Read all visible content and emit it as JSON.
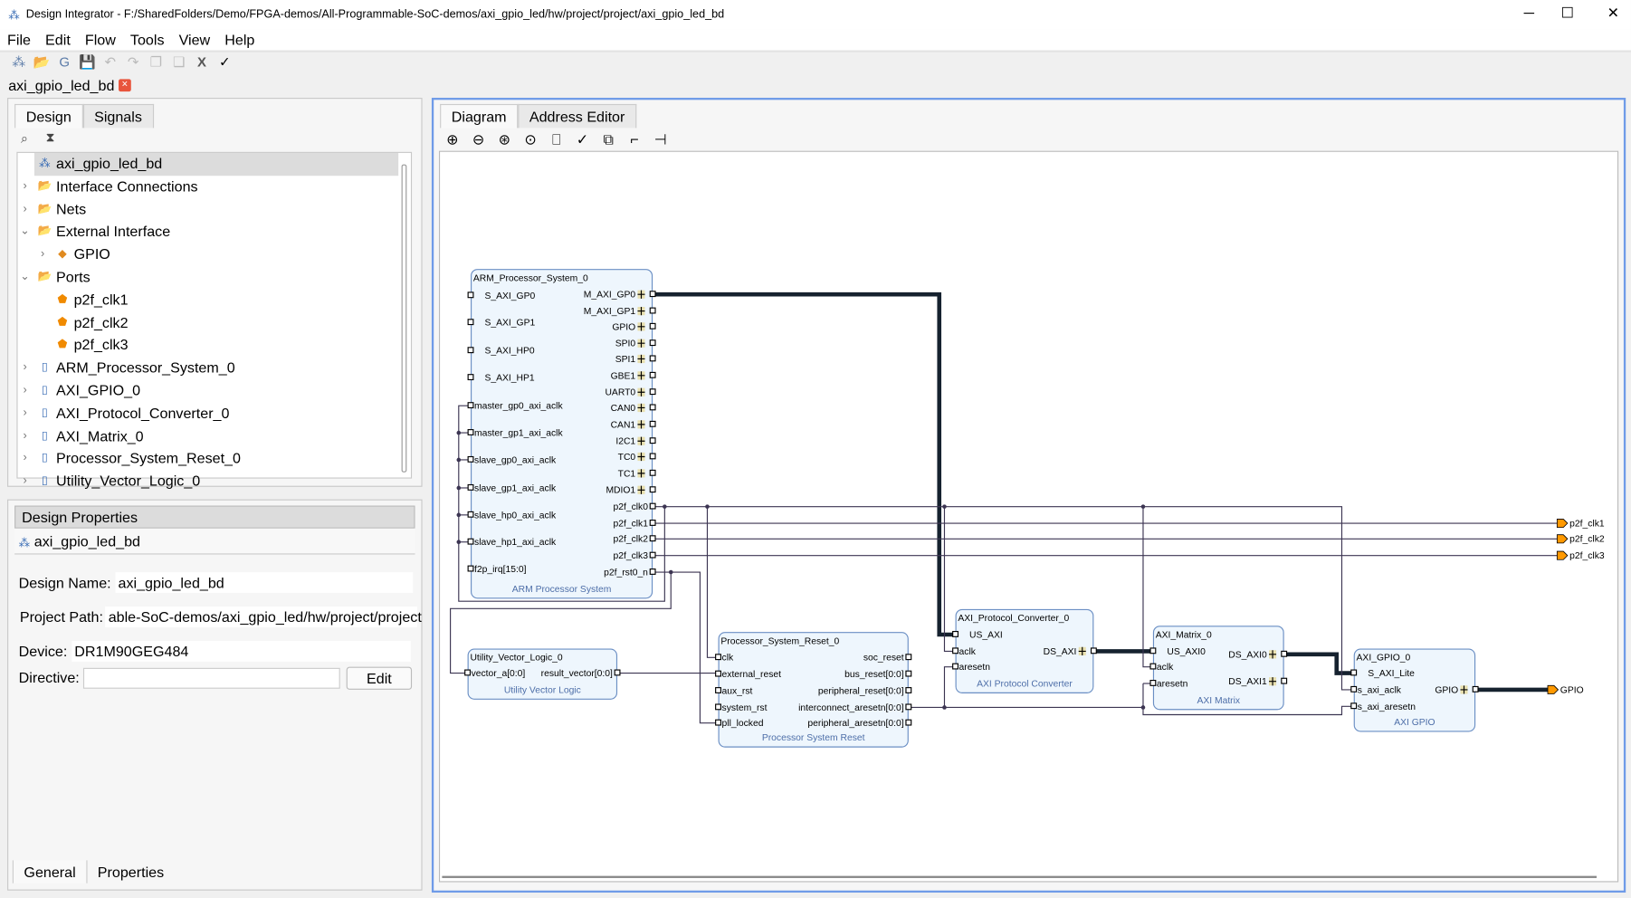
{
  "window": {
    "title": "Design Integrator - F:/SharedFolders/Demo/FPGA-demos/All-Programmable-SoC-demos/axi_gpio_led/hw/project/project/axi_gpio_led_bd",
    "minimize": "─",
    "maximize": "☐",
    "close": "✕"
  },
  "menu": [
    "File",
    "Edit",
    "Flow",
    "Tools",
    "View",
    "Help"
  ],
  "toolbar": [
    {
      "icon": "design-icon",
      "glyph": "⁂"
    },
    {
      "icon": "open-folder-icon",
      "glyph": "📂"
    },
    {
      "icon": "generate-icon",
      "glyph": "G"
    },
    {
      "icon": "save-icon",
      "glyph": "💾"
    },
    {
      "icon": "undo-icon",
      "glyph": "↶"
    },
    {
      "icon": "redo-icon",
      "glyph": "↷"
    },
    {
      "icon": "copy-icon",
      "glyph": "❐"
    },
    {
      "icon": "paste-icon",
      "glyph": "❏"
    },
    {
      "icon": "delete-icon",
      "glyph": "X"
    },
    {
      "icon": "validate-icon",
      "glyph": "✓"
    }
  ],
  "doc_tab": {
    "label": "axi_gpio_led_bd",
    "close": "×"
  },
  "left": {
    "tabs": [
      "Design",
      "Signals"
    ],
    "tree": [
      {
        "label": "axi_gpio_led_bd",
        "level": 0,
        "chevron": "",
        "icon": "⁂",
        "selected": true
      },
      {
        "label": "Interface Connections",
        "level": 0,
        "chevron": "›",
        "icon": "📂"
      },
      {
        "label": "Nets",
        "level": 0,
        "chevron": "›",
        "icon": "📂"
      },
      {
        "label": "External Interface",
        "level": 0,
        "chevron": "⌄",
        "icon": "📂"
      },
      {
        "label": "GPIO",
        "level": 1,
        "chevron": "›",
        "icon": "◆"
      },
      {
        "label": "Ports",
        "level": 0,
        "chevron": "⌄",
        "icon": "📂"
      },
      {
        "label": "p2f_clk1",
        "level": 1,
        "chevron": "",
        "icon": "⬟"
      },
      {
        "label": "p2f_clk2",
        "level": 1,
        "chevron": "",
        "icon": "⬟"
      },
      {
        "label": "p2f_clk3",
        "level": 1,
        "chevron": "",
        "icon": "⬟"
      },
      {
        "label": "ARM_Processor_System_0",
        "level": 0,
        "chevron": "›",
        "icon": "▯"
      },
      {
        "label": "AXI_GPIO_0",
        "level": 0,
        "chevron": "›",
        "icon": "▯"
      },
      {
        "label": "AXI_Protocol_Converter_0",
        "level": 0,
        "chevron": "›",
        "icon": "▯"
      },
      {
        "label": "AXI_Matrix_0",
        "level": 0,
        "chevron": "›",
        "icon": "▯"
      },
      {
        "label": "Processor_System_Reset_0",
        "level": 0,
        "chevron": "›",
        "icon": "▯"
      },
      {
        "label": "Utility_Vector_Logic_0",
        "level": 0,
        "chevron": "›",
        "icon": "▯"
      }
    ]
  },
  "properties": {
    "header": "Design Properties",
    "design": "axi_gpio_led_bd",
    "design_name_label": "Design Name:",
    "design_name": "axi_gpio_led_bd",
    "project_path_label": "Project Path:",
    "project_path": "able-SoC-demos/axi_gpio_led/hw/project/project",
    "device_label": "Device:",
    "device": "DR1M90GEG484",
    "directive_label": "Directive:",
    "directive": "",
    "edit_label": "Edit",
    "bottom_tabs": [
      "General",
      "Properties"
    ]
  },
  "diagram": {
    "tabs": [
      "Diagram",
      "Address Editor"
    ],
    "tools": [
      {
        "icon": "zoom-in-icon",
        "glyph": "⊕"
      },
      {
        "icon": "zoom-out-icon",
        "glyph": "⊖"
      },
      {
        "icon": "zoom-fit-icon",
        "glyph": "⊛"
      },
      {
        "icon": "zoom-selection-icon",
        "glyph": "⊙"
      },
      {
        "icon": "add-ip-icon",
        "glyph": "⎕"
      },
      {
        "icon": "validate-icon",
        "glyph": "✓"
      },
      {
        "icon": "regenerate-layout-icon",
        "glyph": "⧉"
      },
      {
        "icon": "route-icon",
        "glyph": "⌐"
      },
      {
        "icon": "port-icon",
        "glyph": "⊣"
      }
    ],
    "blocks": {
      "arm": {
        "name": "ARM_Processor_System_0",
        "footer": "ARM Processor System",
        "left": [
          "S_AXI_GP0",
          "S_AXI_GP1",
          "S_AXI_HP0",
          "S_AXI_HP1",
          "master_gp0_axi_aclk",
          "master_gp1_axi_aclk",
          "slave_gp0_axi_aclk",
          "slave_gp1_axi_aclk",
          "slave_hp0_axi_aclk",
          "slave_hp1_axi_aclk",
          "f2p_irq[15:0]"
        ],
        "right": [
          "M_AXI_GP0",
          "M_AXI_GP1",
          "GPIO",
          "SPI0",
          "SPI1",
          "GBE1",
          "UART0",
          "CAN0",
          "CAN1",
          "I2C1",
          "TC0",
          "TC1",
          "MDIO1",
          "p2f_clk0",
          "p2f_clk1",
          "p2f_clk2",
          "p2f_clk3",
          "p2f_rst0_n"
        ]
      },
      "uvl": {
        "name": "Utility_Vector_Logic_0",
        "footer": "Utility Vector Logic",
        "left": [
          "vector_a[0:0]"
        ],
        "right": [
          "result_vector[0:0]"
        ]
      },
      "psr": {
        "name": "Processor_System_Reset_0",
        "footer": "Processor System Reset",
        "left": [
          "clk",
          "external_reset",
          "aux_rst",
          "system_rst",
          "pll_locked"
        ],
        "right": [
          "soc_reset",
          "bus_reset[0:0]",
          "peripheral_reset[0:0]",
          "interconnect_aresetn[0:0]",
          "peripheral_aresetn[0:0]"
        ]
      },
      "apc": {
        "name": "AXI_Protocol_Converter_0",
        "footer": "AXI Protocol Converter",
        "left": [
          "US_AXI",
          "aclk",
          "aresetn"
        ],
        "right": [
          "DS_AXI"
        ]
      },
      "mtx": {
        "name": "AXI_Matrix_0",
        "footer": "AXI Matrix",
        "left": [
          "US_AXI0",
          "aclk",
          "aresetn"
        ],
        "right": [
          "DS_AXI0",
          "DS_AXI1"
        ]
      },
      "gpio": {
        "name": "AXI_GPIO_0",
        "footer": "AXI GPIO",
        "left": [
          "S_AXI_Lite",
          "s_axi_aclk",
          "s_axi_aresetn"
        ],
        "right": [
          "GPIO"
        ]
      }
    },
    "external_ports": [
      "p2f_clk1",
      "p2f_clk2",
      "p2f_clk3",
      "GPIO"
    ],
    "colors": {
      "block_fill": "#eef6fd",
      "block_border": "#6b8fc4",
      "wire": "#3c3552",
      "bus": "#16222f",
      "port": "#ff9900",
      "accent": "#6f9be8"
    }
  }
}
